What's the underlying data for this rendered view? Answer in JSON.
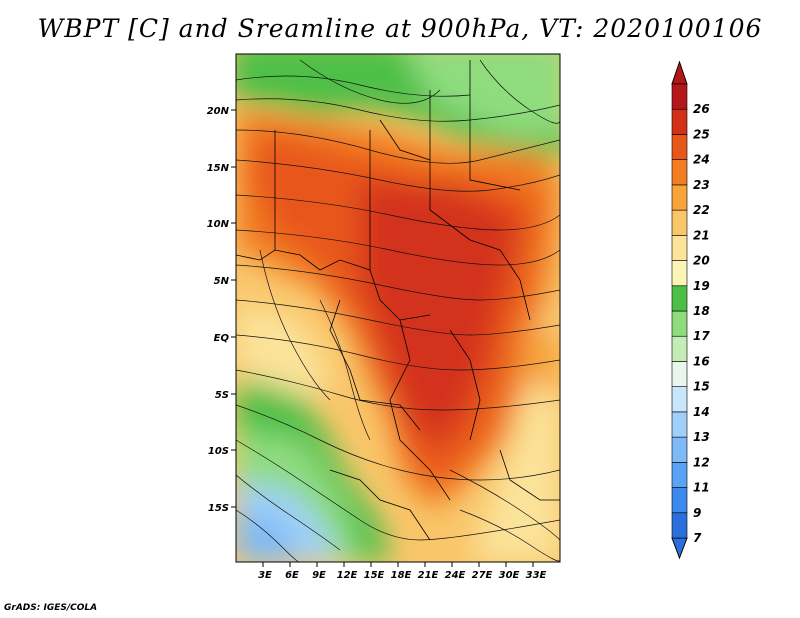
{
  "title": "WBPT [C] and Sreamline at 900hPa, VT: 2020100106",
  "footer": "GrADS: IGES/COLA",
  "map": {
    "lon_range": [
      0,
      36
    ],
    "lat_range": [
      -20,
      25
    ],
    "lon_ticks": [
      "3E",
      "6E",
      "9E",
      "12E",
      "15E",
      "18E",
      "21E",
      "24E",
      "27E",
      "30E",
      "33E"
    ],
    "lat_ticks": [
      "20N",
      "15N",
      "10N",
      "5N",
      "EQ",
      "5S",
      "10S",
      "15S"
    ]
  },
  "colorbar": {
    "labels": [
      "7",
      "9",
      "11",
      "12",
      "13",
      "14",
      "15",
      "16",
      "17",
      "18",
      "19",
      "20",
      "21",
      "22",
      "23",
      "24",
      "25",
      "26"
    ],
    "colors": [
      "#2a6fdc",
      "#3c8af0",
      "#5aa2f5",
      "#7dbaf7",
      "#a0d0f9",
      "#c9e6fb",
      "#e8f6ee",
      "#c4ecb6",
      "#8fdc7e",
      "#4dbf47",
      "#fdf4b8",
      "#fbe39a",
      "#f9c66a",
      "#f7a43c",
      "#f27d22",
      "#e8561a",
      "#d3301a",
      "#b4161a"
    ]
  }
}
